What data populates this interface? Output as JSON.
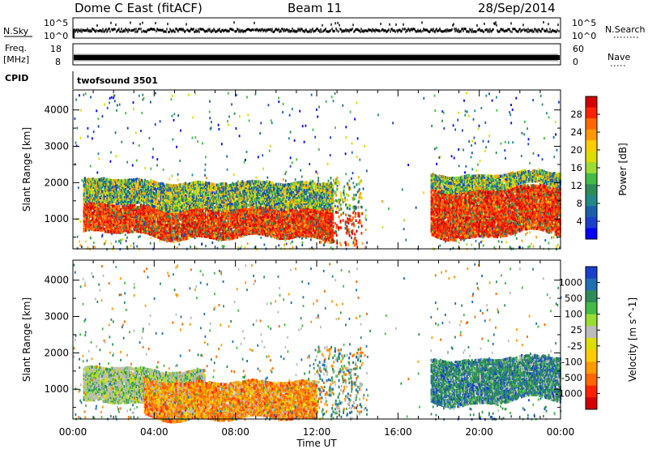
{
  "header": {
    "title": "Dome C East (fitACF)",
    "beam": "Beam 11",
    "date": "28/Sep/2014"
  },
  "top_panels": {
    "nsky_label": "N.Sky",
    "nsky_ticks": [
      "10^5",
      "10^0"
    ],
    "nsearch_label": "N.Search",
    "nsearch_ticks": [
      "10^5",
      "10^0"
    ],
    "freq_label": "Freq.",
    "freq_unit": "[MHz]",
    "freq_ticks": [
      "18",
      "8"
    ],
    "nave_label": "Nave",
    "nave_ticks": [
      "60",
      "0"
    ],
    "cpid_label": "CPID",
    "cpid_name": "twofsound 3501"
  },
  "chart_data": [
    {
      "type": "heatmap",
      "name": "power-panel",
      "ylabel": "Slant Range [km]",
      "xlabel": "Time UT",
      "xlim": [
        0,
        24
      ],
      "ylim": [
        180,
        4550
      ],
      "x_ticks": [
        "00:00",
        "04:00",
        "08:00",
        "12:00",
        "16:00",
        "20:00",
        "00:00"
      ],
      "y_ticks": [
        1000,
        2000,
        3000,
        4000
      ],
      "colorbar": {
        "label": "Power [dB]",
        "ticks": [
          "28",
          "24",
          "20",
          "16",
          "12",
          "8",
          "4"
        ],
        "colors": [
          "#d40000",
          "#ff2200",
          "#ff6600",
          "#ff9900",
          "#ffcc00",
          "#dddd00",
          "#99dd33",
          "#44bb44",
          "#2e8b57",
          "#228888",
          "#1a5fa8",
          "#1a3fcc",
          "#0000ff"
        ]
      },
      "bands": [
        {
          "t0": 0.5,
          "t1": 12.8,
          "r0": 600,
          "r1": 1400,
          "level": "high"
        },
        {
          "t0": 0.5,
          "t1": 12.8,
          "r0": 1400,
          "r1": 2100,
          "level": "medium"
        },
        {
          "t0": 17.6,
          "t1": 24.0,
          "r0": 600,
          "r1": 1900,
          "level": "high"
        },
        {
          "t0": 17.6,
          "t1": 24.0,
          "r0": 1900,
          "r1": 2300,
          "level": "medium"
        }
      ]
    },
    {
      "type": "heatmap",
      "name": "velocity-panel",
      "ylabel": "Slant Range [km]",
      "xlabel": "Time UT",
      "xlim": [
        0,
        24
      ],
      "ylim": [
        180,
        4550
      ],
      "x_ticks": [
        "00:00",
        "04:00",
        "08:00",
        "12:00",
        "16:00",
        "20:00",
        "00:00"
      ],
      "y_ticks": [
        1000,
        2000,
        3000,
        4000
      ],
      "colorbar": {
        "label": "Velocity [m s^-1]",
        "ticks": [
          "1000",
          "500",
          "100",
          "25",
          "-25",
          "-100",
          "-500",
          "-1000"
        ],
        "colors": [
          "#1a3fcc",
          "#1f6fb4",
          "#2e8b57",
          "#44bb44",
          "#99dd33",
          "#bbbbbb",
          "#dddd00",
          "#ffcc00",
          "#ff9900",
          "#ff6600",
          "#ff2200",
          "#d40000"
        ]
      },
      "bands": [
        {
          "t0": 0.5,
          "t1": 6.5,
          "r0": 600,
          "r1": 1600,
          "level": "green-grey"
        },
        {
          "t0": 3.5,
          "t1": 12.0,
          "r0": 300,
          "r1": 1300,
          "level": "orange"
        },
        {
          "t0": 17.6,
          "t1": 24.0,
          "r0": 700,
          "r1": 1900,
          "level": "green"
        }
      ]
    }
  ]
}
